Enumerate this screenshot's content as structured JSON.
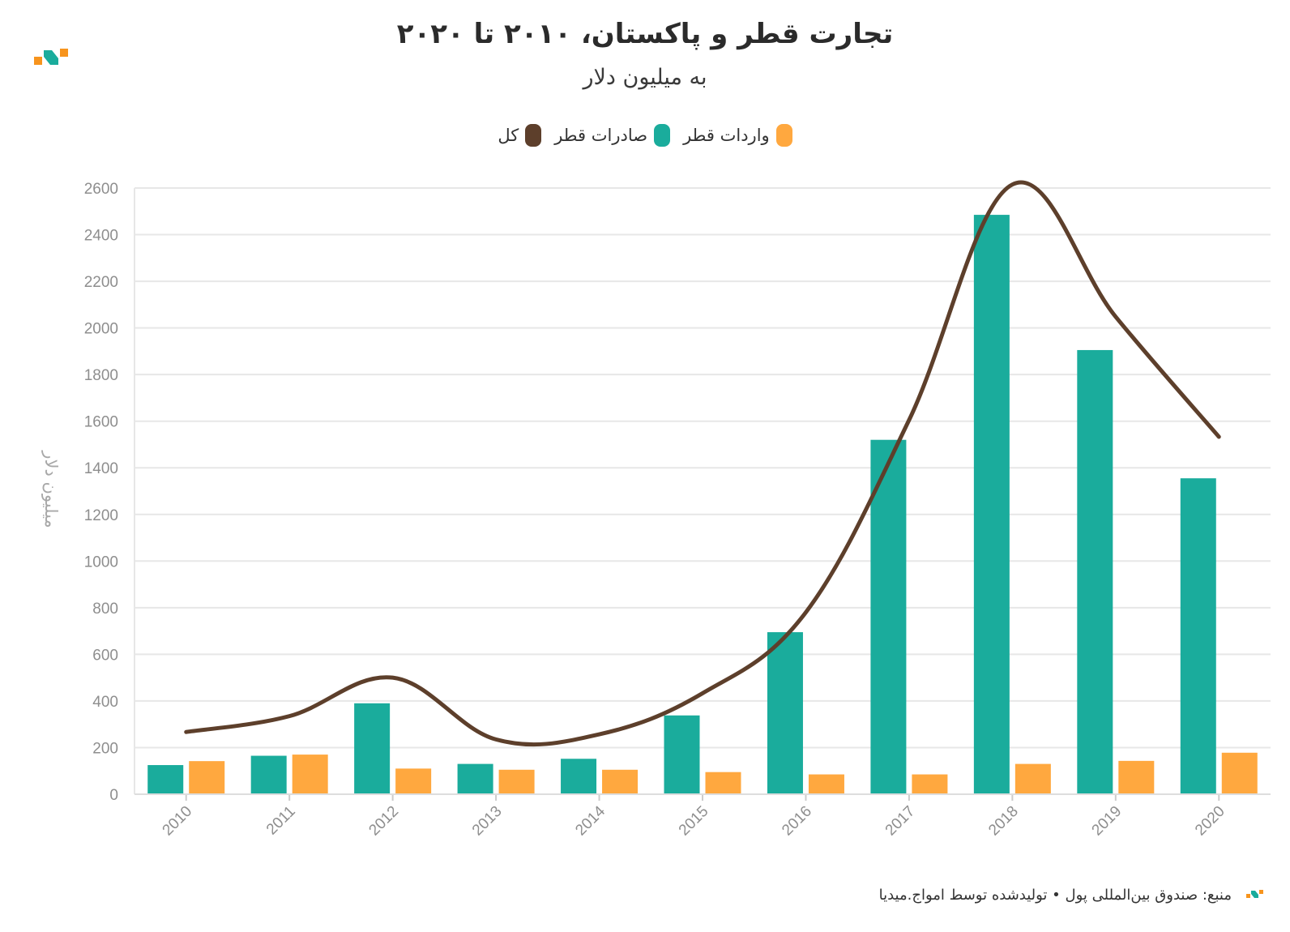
{
  "header": {
    "title": "تجارت قطر و پاکستان، ۲۰۱۰ تا ۲۰۲۰",
    "subtitle": "به میلیون دلار"
  },
  "legend": {
    "imports": "واردات قطر",
    "exports": "صادرات قطر",
    "total": "کل"
  },
  "footer": {
    "source": "منبع: صندوق بین‌المللی پول • تولیدشده توسط امواج.میدیا"
  },
  "colors": {
    "exports": "#1aac9c",
    "imports": "#ffa83f",
    "total": "#5d3f2b",
    "logo_orange": "#f7941d",
    "logo_teal": "#1aac9c"
  },
  "chart_data": {
    "type": "bar",
    "title": "تجارت قطر و پاکستان، ۲۰۱۰ تا ۲۰۲۰",
    "subtitle": "به میلیون دلار",
    "xlabel": "",
    "ylabel": "میلیون دلار",
    "ylim": [
      0,
      2600
    ],
    "yticks": [
      0,
      200,
      400,
      600,
      800,
      1000,
      1200,
      1400,
      1600,
      1800,
      2000,
      2200,
      2400,
      2600
    ],
    "grid": true,
    "legend_position": "top-center",
    "categories": [
      "2010",
      "2011",
      "2012",
      "2013",
      "2014",
      "2015",
      "2016",
      "2017",
      "2018",
      "2019",
      "2020"
    ],
    "series": [
      {
        "name": "صادرات قطر",
        "kind": "bar",
        "values": [
          125,
          165,
          390,
          130,
          152,
          338,
          695,
          1520,
          2485,
          1905,
          1355
        ]
      },
      {
        "name": "واردات قطر",
        "kind": "bar",
        "values": [
          142,
          170,
          110,
          105,
          105,
          95,
          85,
          85,
          130,
          143,
          178
        ]
      },
      {
        "name": "کل",
        "kind": "line",
        "values": [
          267,
          335,
          500,
          235,
          257,
          433,
          780,
          1605,
          2615,
          2048,
          1533
        ]
      }
    ]
  }
}
